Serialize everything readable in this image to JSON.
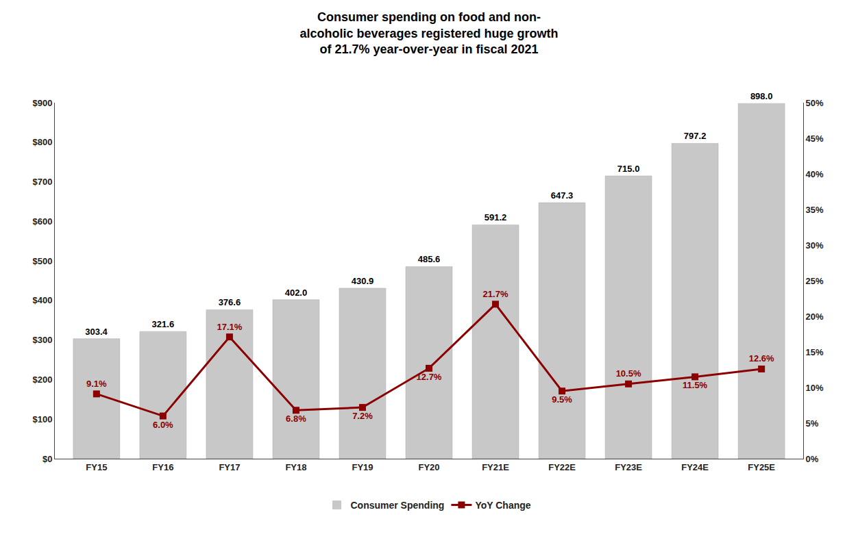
{
  "chart_data": {
    "type": "bar",
    "title": "Consumer spending on food and non-\nalcoholic beverages registered huge growth\nof 21.7% year-over-year in fiscal 2021",
    "categories": [
      "FY15",
      "FY16",
      "FY17",
      "FY18",
      "FY19",
      "FY20",
      "FY21E",
      "FY22E",
      "FY23E",
      "FY24E",
      "FY25E"
    ],
    "series": [
      {
        "name": "Consumer Spending",
        "type": "bar",
        "color": "#C8C8C8",
        "values": [
          303.4,
          321.6,
          376.6,
          402.0,
          430.9,
          485.6,
          591.2,
          647.3,
          715.0,
          797.2,
          898.0
        ],
        "value_labels": [
          "303.4",
          "321.6",
          "376.6",
          "402.0",
          "430.9",
          "485.6",
          "591.2",
          "647.3",
          "715.0",
          "797.2",
          "898.0"
        ]
      },
      {
        "name": "YoY Change",
        "type": "line",
        "axis": "y2",
        "color": "#8B0000",
        "marker": "square",
        "values": [
          9.1,
          6.0,
          17.1,
          6.8,
          7.2,
          12.7,
          21.7,
          9.5,
          10.5,
          11.5,
          12.6
        ],
        "value_labels": [
          "9.1%",
          "6.0%",
          "17.1%",
          "6.8%",
          "7.2%",
          "12.7%",
          "21.7%",
          "9.5%",
          "10.5%",
          "11.5%",
          "12.6%"
        ]
      }
    ],
    "ylim": [
      0,
      900
    ],
    "yticks": [
      {
        "value": 0,
        "label": "$0"
      },
      {
        "value": 100,
        "label": "$100"
      },
      {
        "value": 200,
        "label": "$200"
      },
      {
        "value": 300,
        "label": "$300"
      },
      {
        "value": 400,
        "label": "$400"
      },
      {
        "value": 500,
        "label": "$500"
      },
      {
        "value": 600,
        "label": "$600"
      },
      {
        "value": 700,
        "label": "$700"
      },
      {
        "value": 800,
        "label": "$800"
      },
      {
        "value": 900,
        "label": "$900"
      }
    ],
    "y2lim": [
      0,
      50
    ],
    "y2ticks": [
      {
        "value": 0,
        "label": "0%"
      },
      {
        "value": 5,
        "label": "5%"
      },
      {
        "value": 10,
        "label": "10%"
      },
      {
        "value": 15,
        "label": "15%"
      },
      {
        "value": 20,
        "label": "20%"
      },
      {
        "value": 25,
        "label": "25%"
      },
      {
        "value": 30,
        "label": "30%"
      },
      {
        "value": 35,
        "label": "35%"
      },
      {
        "value": 40,
        "label": "40%"
      },
      {
        "value": 45,
        "label": "45%"
      },
      {
        "value": 50,
        "label": "50%"
      }
    ],
    "grid": false,
    "legend": "bottom",
    "data_labels": true
  }
}
